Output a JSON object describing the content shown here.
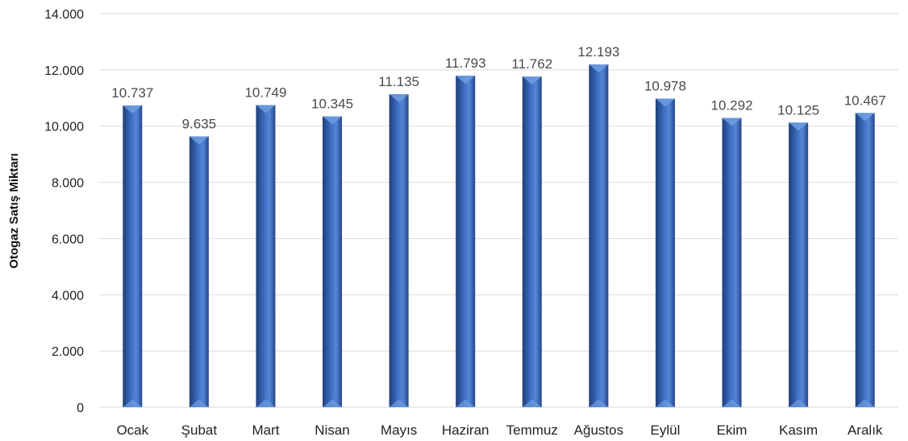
{
  "chart_data": {
    "type": "bar",
    "ylabel": "Otogaz Satış Miktarı",
    "xlabel": "",
    "categories": [
      "Ocak",
      "Şubat",
      "Mart",
      "Nisan",
      "Mayıs",
      "Haziran",
      "Temmuz",
      "Ağustos",
      "Eylül",
      "Ekim",
      "Kasım",
      "Aralık"
    ],
    "values": [
      10737,
      9635,
      10749,
      10345,
      11135,
      11793,
      11762,
      12193,
      10978,
      10292,
      10125,
      10467
    ],
    "value_labels": [
      "10.737",
      "9.635",
      "10.749",
      "10.345",
      "11.135",
      "11.793",
      "11.762",
      "12.193",
      "10.978",
      "10.292",
      "10.125",
      "10.467"
    ],
    "ylim": [
      0,
      14000
    ],
    "yticks": [
      0,
      2000,
      4000,
      6000,
      8000,
      10000,
      12000,
      14000
    ],
    "ytick_labels": [
      "0",
      "2.000",
      "4.000",
      "6.000",
      "8.000",
      "10.000",
      "12.000",
      "14.000"
    ],
    "grid": true,
    "legend": "none",
    "colors": {
      "bar": "#3a68b8",
      "bar_dark": "#1f3f7a",
      "bar_light": "#6f9de0"
    }
  }
}
